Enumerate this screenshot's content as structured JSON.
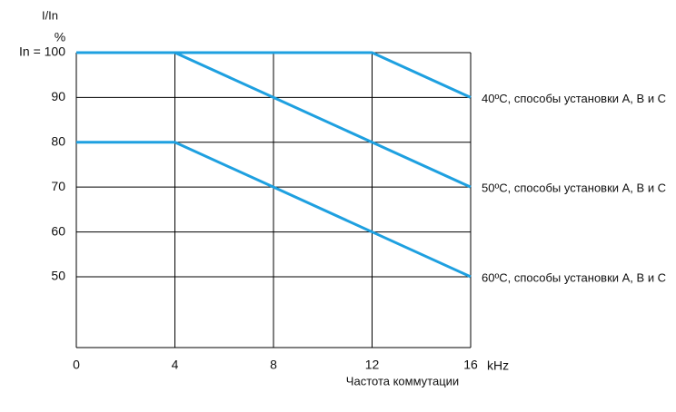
{
  "chart_data": {
    "type": "line",
    "y_label": "I/In",
    "y_unit": "%",
    "x_label": "Частота коммутации",
    "x_unit": "kHz",
    "x": [
      0,
      4,
      8,
      12,
      16
    ],
    "series": [
      {
        "name": "40ºC, способы установки A, B и C",
        "color": "#1ea0e0",
        "values": [
          100,
          100,
          100,
          100,
          90
        ]
      },
      {
        "name": "50ºC, способы установки A, B и C",
        "color": "#1ea0e0",
        "values": [
          100,
          100,
          90,
          80,
          70
        ]
      },
      {
        "name": "60ºC, способы установки A, B и C",
        "color": "#1ea0e0",
        "values": [
          80,
          80,
          70,
          60,
          50
        ]
      }
    ],
    "xlim": [
      0,
      16
    ],
    "xticks": [
      0,
      4,
      8,
      12,
      16
    ],
    "ylim": [
      34.2,
      100
    ],
    "yticks": [
      50,
      60,
      70,
      80,
      90,
      {
        "value": 100,
        "label": "In = 100"
      }
    ],
    "grid": true
  }
}
